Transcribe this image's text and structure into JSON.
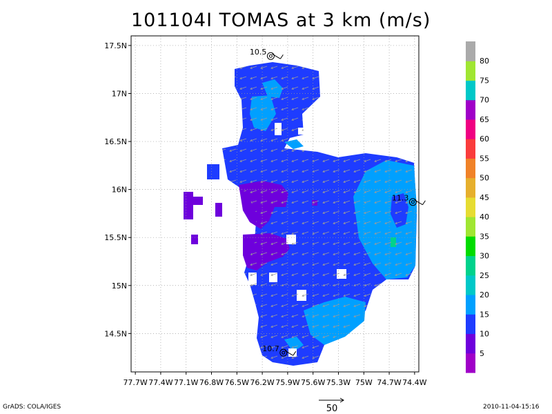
{
  "title": "101104I TOMAS at 3 km (m/s)",
  "footer": {
    "left": "GrADS: COLA/IGES",
    "right": "2010-11-04-15:16",
    "reference_vector_label": "50"
  },
  "map": {
    "lon_ticks": [
      "77.7W",
      "77.4W",
      "77.1W",
      "76.8W",
      "76.5W",
      "76.2W",
      "75.9W",
      "75.6W",
      "75.3W",
      "75W",
      "74.7W",
      "74.4W"
    ],
    "lat_ticks": [
      "17.5N",
      "17N",
      "16.5N",
      "16N",
      "15.5N",
      "15N",
      "14.5N"
    ],
    "lon_range": [
      -77.75,
      -74.35
    ],
    "lat_range": [
      14.1,
      17.6
    ],
    "grid": "dotted",
    "center_markers": [
      {
        "label": "10.5",
        "lon": -76.1,
        "lat": 17.39
      },
      {
        "label": "11.3",
        "lon": -74.42,
        "lat": 15.87
      },
      {
        "label": "10.7",
        "lon": -75.95,
        "lat": 14.3
      }
    ],
    "wind_flow": "cyclonic, predominantly from east toward west"
  },
  "colorbar": {
    "labels": [
      "5",
      "10",
      "15",
      "20",
      "25",
      "30",
      "35",
      "40",
      "45",
      "50",
      "55",
      "60",
      "65",
      "70",
      "75",
      "80"
    ],
    "colors": [
      "#a000c8",
      "#6e00dc",
      "#1e3cff",
      "#00a0ff",
      "#00c8c8",
      "#00d28c",
      "#00dc00",
      "#a0e632",
      "#e6dc32",
      "#e6af2d",
      "#f08228",
      "#fa3c3c",
      "#f00082",
      "#a000c8",
      "#00c8c8",
      "#a0e632",
      "#aaaaaa"
    ]
  }
}
